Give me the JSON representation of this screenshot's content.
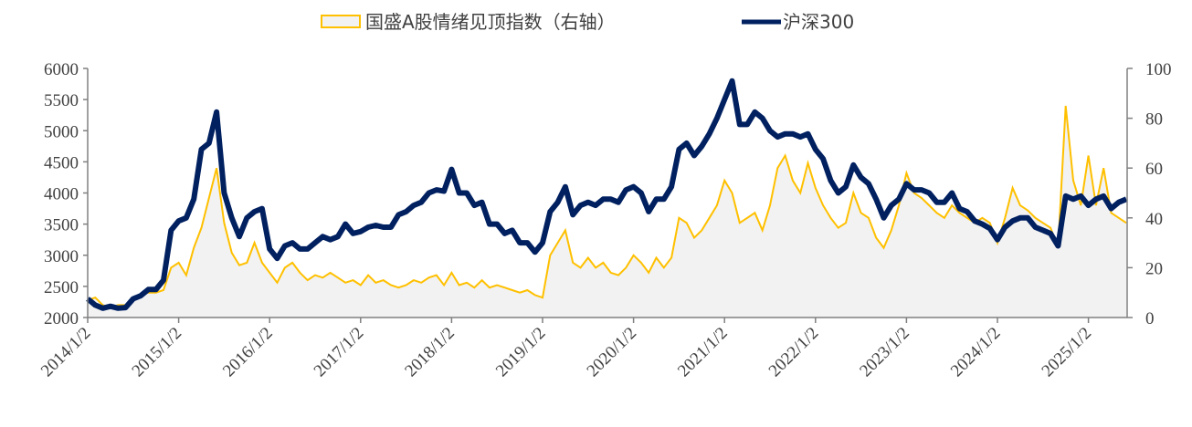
{
  "chart_data": {
    "type": "line",
    "title": "",
    "legend": {
      "placement": "top",
      "items": [
        "国盛A股情绪见顶指数（右轴）",
        "沪深300"
      ]
    },
    "x": {
      "tick_labels": [
        "2014/1/2",
        "2015/1/2",
        "2016/1/2",
        "2017/1/2",
        "2018/1/2",
        "2019/1/2",
        "2020/1/2",
        "2021/1/2",
        "2022/1/2",
        "2023/1/2",
        "2024/1/2",
        "2025/1/2"
      ],
      "range": [
        "2014-01",
        "2025-06"
      ],
      "resolution": "monthly"
    },
    "y_left": {
      "range": [
        2000,
        6000
      ],
      "ticks": [
        "2000",
        "2500",
        "3000",
        "3500",
        "4000",
        "4500",
        "5000",
        "5500",
        "6000"
      ]
    },
    "y_right": {
      "range": [
        0,
        100
      ],
      "ticks": [
        "0",
        "20",
        "40",
        "60",
        "80",
        "100"
      ]
    },
    "grid": false,
    "series": [
      {
        "name": "国盛A股情绪见顶指数（右轴）",
        "axis": "right",
        "style": "area",
        "color": "#FFC000",
        "fill": "#F2F2F2",
        "values": [
          7,
          8,
          5,
          4,
          5,
          5,
          7,
          9,
          10,
          10,
          11,
          20,
          22,
          17,
          28,
          36,
          48,
          60,
          38,
          26,
          21,
          22,
          30,
          22,
          18,
          14,
          20,
          22,
          18,
          15,
          17,
          16,
          18,
          16,
          14,
          15,
          13,
          17,
          14,
          15,
          13,
          12,
          13,
          15,
          14,
          16,
          17,
          13,
          18,
          13,
          14,
          12,
          15,
          12,
          13,
          12,
          11,
          10,
          11,
          9,
          8,
          25,
          30,
          35,
          22,
          20,
          24,
          20,
          22,
          18,
          17,
          20,
          25,
          22,
          18,
          24,
          20,
          24,
          40,
          38,
          32,
          35,
          40,
          45,
          55,
          50,
          38,
          40,
          42,
          35,
          45,
          60,
          65,
          55,
          50,
          62,
          52,
          45,
          40,
          36,
          38,
          50,
          42,
          40,
          32,
          28,
          35,
          45,
          58,
          50,
          48,
          45,
          42,
          40,
          45,
          42,
          40,
          38,
          40,
          38,
          30,
          40,
          52,
          45,
          43,
          40,
          38,
          36,
          28,
          85,
          55,
          45,
          65,
          45,
          60,
          42,
          40,
          38
        ]
      },
      {
        "name": "沪深300",
        "axis": "left",
        "style": "line",
        "color": "#002060",
        "values": [
          2300,
          2200,
          2150,
          2180,
          2150,
          2160,
          2300,
          2350,
          2450,
          2450,
          2600,
          3400,
          3550,
          3600,
          3900,
          4700,
          4800,
          5300,
          4000,
          3600,
          3300,
          3600,
          3700,
          3750,
          3100,
          2950,
          3150,
          3200,
          3100,
          3100,
          3200,
          3300,
          3250,
          3300,
          3500,
          3350,
          3380,
          3450,
          3480,
          3450,
          3450,
          3650,
          3700,
          3800,
          3850,
          4000,
          4050,
          4030,
          4380,
          4000,
          4000,
          3800,
          3850,
          3500,
          3500,
          3350,
          3400,
          3200,
          3200,
          3050,
          3200,
          3700,
          3850,
          4100,
          3650,
          3800,
          3850,
          3800,
          3900,
          3900,
          3850,
          4050,
          4100,
          4000,
          3700,
          3900,
          3900,
          4100,
          4700,
          4800,
          4600,
          4750,
          4950,
          5200,
          5500,
          5800,
          5100,
          5100,
          5300,
          5200,
          5000,
          4900,
          4950,
          4950,
          4900,
          4950,
          4700,
          4550,
          4200,
          4000,
          4100,
          4450,
          4250,
          4150,
          3900,
          3600,
          3800,
          3900,
          4150,
          4050,
          4050,
          4000,
          3850,
          3850,
          4000,
          3750,
          3700,
          3550,
          3500,
          3430,
          3250,
          3450,
          3550,
          3600,
          3600,
          3450,
          3400,
          3350,
          3150,
          3950,
          3900,
          3950,
          3800,
          3900,
          3950,
          3750,
          3850,
          3900
        ]
      }
    ]
  }
}
